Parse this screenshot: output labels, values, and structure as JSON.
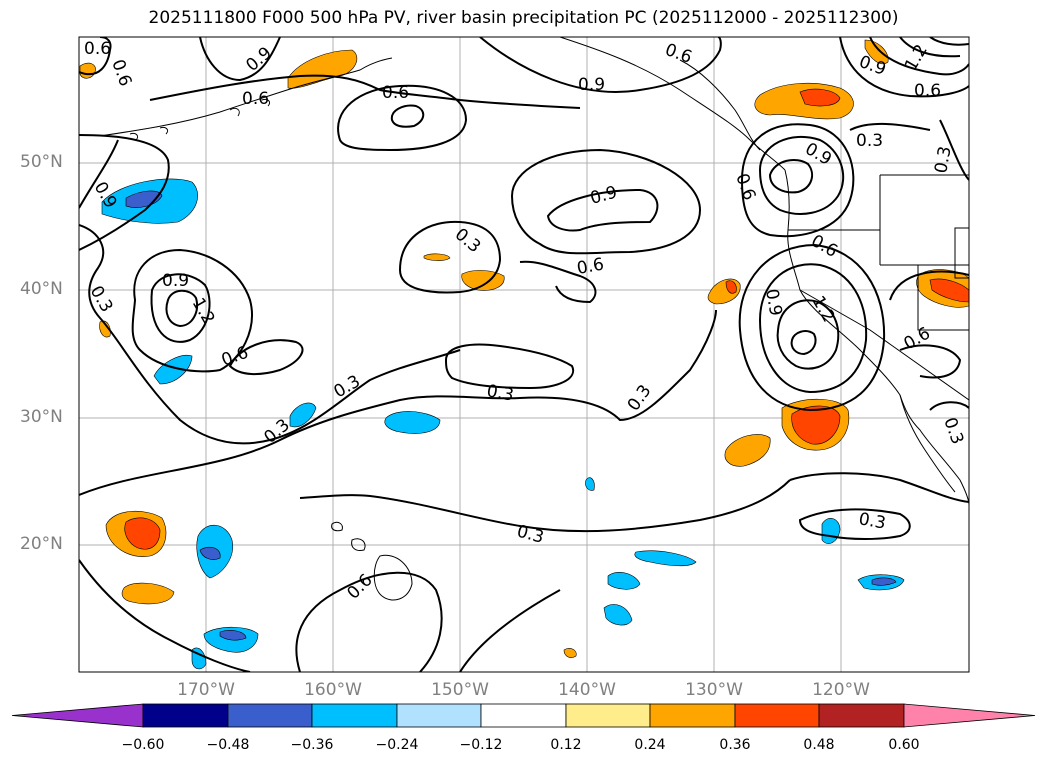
{
  "title": "2025111800 F000 500 hPa PV, river basin precipitation PC (2025112000 - 2025112300)",
  "lat_labels": [
    "50°N",
    "40°N",
    "30°N",
    "20°N"
  ],
  "lon_labels": [
    "170°W",
    "160°W",
    "150°W",
    "140°W",
    "130°W",
    "120°W"
  ],
  "contour_labels": [
    "0.6",
    "0.6",
    "0.9",
    "0.6",
    "0.6",
    "0.9",
    "0.6",
    "0.9",
    "0.6",
    "1.2",
    "0.9",
    "0.9",
    "0.3",
    "0.3",
    "0.9",
    "0.3",
    "0.3",
    "0.6",
    "0.9",
    "1.2",
    "0.6",
    "0.3",
    "0.3",
    "0.3",
    "0.3",
    "0.6",
    "0.9",
    "0.6",
    "1.2",
    "0.6",
    "0.3",
    "0.3",
    "0.3",
    "0.6"
  ],
  "colorbar": {
    "tick_labels": [
      "−0.60",
      "−0.48",
      "−0.36",
      "−0.24",
      "−0.12",
      "0.12",
      "0.24",
      "0.36",
      "0.48",
      "0.60"
    ],
    "colors": [
      "#9932cc",
      "#00008b",
      "#3a5fcd",
      "#00bfff",
      "#b0e2ff",
      "#ffffff",
      "#ffec8b",
      "#ffa500",
      "#ff4500",
      "#b22222",
      "#ff82ab"
    ]
  }
}
